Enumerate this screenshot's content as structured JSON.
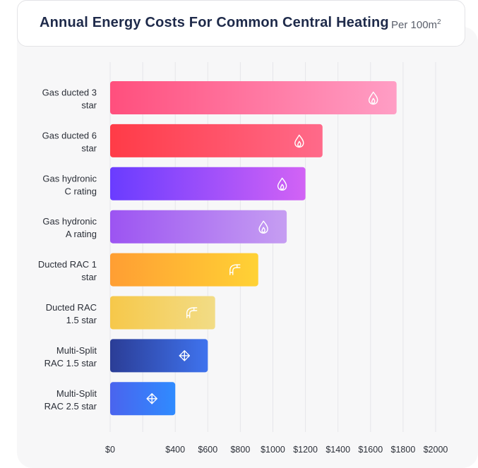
{
  "title": "Annual Energy Costs For Common Central Heating",
  "unit_prefix": "Per 100m",
  "unit_sup": "2",
  "chart_data": {
    "type": "bar",
    "orientation": "horizontal",
    "categories": [
      [
        "Gas ducted 3",
        "star"
      ],
      [
        "Gas ducted 6",
        "star"
      ],
      [
        "Gas hydronic",
        "C rating"
      ],
      [
        "Gas hydronic",
        "A rating"
      ],
      [
        "Ducted RAC 1",
        "star"
      ],
      [
        "Ducted RAC",
        "1.5 star"
      ],
      [
        "Multi-Split",
        "RAC 1.5 star"
      ],
      [
        "Multi-Split",
        "RAC 2.5 star"
      ]
    ],
    "values": [
      1760,
      1305,
      1200,
      1085,
      910,
      645,
      600,
      400
    ],
    "xlim": [
      0,
      2000
    ],
    "ticks": [
      0,
      200,
      400,
      600,
      800,
      1000,
      1200,
      1400,
      1600,
      1800,
      2000
    ],
    "tick_labels": [
      "$0",
      "$400",
      "$600",
      "$800",
      "$1000",
      "$1200",
      "$1400",
      "$1600",
      "$1800",
      "$2000"
    ],
    "tick_label_values": [
      0,
      400,
      600,
      800,
      1000,
      1200,
      1400,
      1600,
      1800,
      2000
    ],
    "grid": true,
    "gradients": [
      [
        "#ff4f7d",
        "#ff9ec5"
      ],
      [
        "#ff3b47",
        "#ff6a8a"
      ],
      [
        "#6a3cff",
        "#d263f5"
      ],
      [
        "#9c54f2",
        "#c69ef2"
      ],
      [
        "#ff9e33",
        "#ffd235"
      ],
      [
        "#f6c84a",
        "#f2dc86"
      ],
      [
        "#2b3d96",
        "#3f73ee"
      ],
      [
        "#4a64ee",
        "#2f8bff"
      ]
    ],
    "icons": [
      "flame-icon",
      "flame-icon",
      "flame-icon",
      "flame-icon",
      "duct-icon",
      "duct-icon",
      "fan-icon",
      "fan-icon"
    ]
  }
}
